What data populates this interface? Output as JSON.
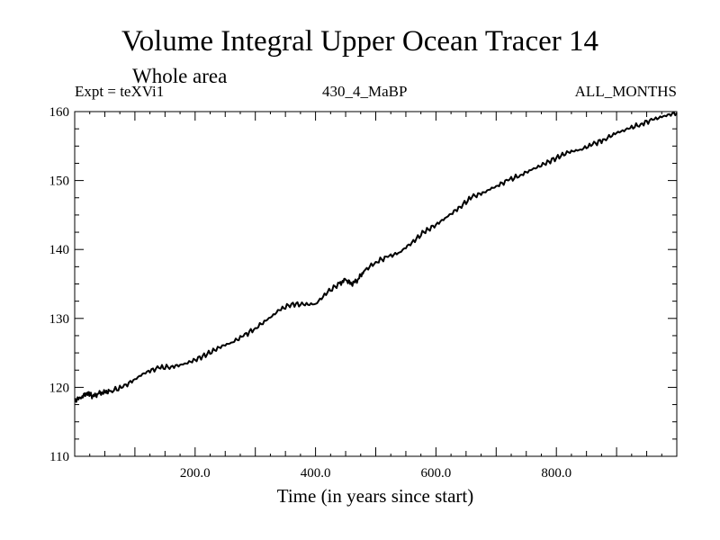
{
  "chart_data": {
    "type": "line",
    "title": "Volume Integral Upper Ocean Tracer 14",
    "subtitle": "Whole area",
    "header_left": "Expt = teXVi1",
    "header_center": "430_4_MaBP",
    "header_right": "ALL_MONTHS",
    "xlabel": "Time (in years since start)",
    "ylabel": "",
    "xlim": [
      0,
      1000
    ],
    "ylim": [
      110,
      160
    ],
    "xticks": [
      200,
      400,
      600,
      800
    ],
    "xtick_labels": [
      "200.0",
      "400.0",
      "600.0",
      "800.0"
    ],
    "yticks": [
      110,
      120,
      130,
      140,
      150,
      160
    ],
    "ytick_labels": [
      "110",
      "120",
      "130",
      "140",
      "150",
      "160"
    ],
    "grid": false,
    "series": [
      {
        "name": "Tracer 14",
        "x": [
          0,
          10,
          20,
          25,
          30,
          40,
          50,
          60,
          80,
          100,
          120,
          140,
          160,
          180,
          200,
          220,
          240,
          260,
          280,
          300,
          320,
          340,
          360,
          380,
          400,
          420,
          440,
          450,
          460,
          470,
          480,
          500,
          520,
          540,
          560,
          580,
          600,
          620,
          640,
          660,
          680,
          700,
          720,
          740,
          760,
          780,
          800,
          820,
          840,
          860,
          880,
          900,
          920,
          940,
          960,
          980,
          1000
        ],
        "y": [
          118.2,
          118.4,
          119.2,
          119.0,
          118.7,
          119.1,
          119.3,
          119.5,
          120.0,
          121.2,
          122.3,
          122.8,
          123.0,
          123.3,
          124.0,
          124.8,
          125.8,
          126.5,
          127.4,
          128.6,
          129.8,
          131.2,
          132.1,
          132.0,
          132.1,
          133.8,
          135.1,
          135.6,
          135.0,
          135.6,
          136.8,
          138.2,
          138.9,
          139.6,
          141.0,
          142.5,
          143.6,
          144.8,
          146.2,
          147.6,
          148.3,
          149.2,
          150.0,
          150.8,
          151.6,
          152.4,
          153.3,
          154.1,
          154.5,
          155.2,
          156.0,
          156.9,
          157.5,
          158.2,
          158.8,
          159.4,
          159.8
        ]
      }
    ]
  }
}
